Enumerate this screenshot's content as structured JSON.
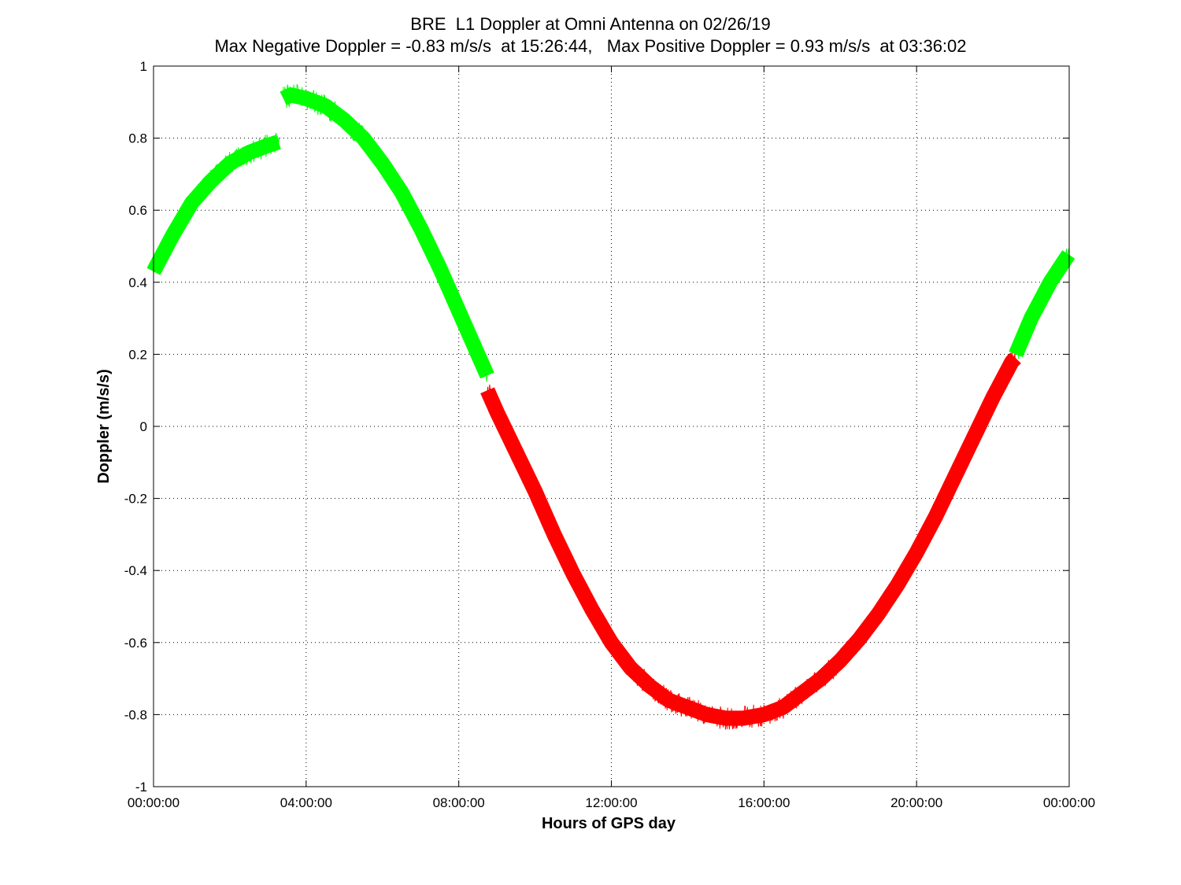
{
  "chart_data": {
    "type": "line",
    "title": "BRE  L1 Doppler at Omni Antenna on 02/26/19",
    "subtitle": "Max Negative Doppler = -0.83 m/s/s  at 15:26:44,   Max Positive Doppler = 0.93 m/s/s  at 03:36:02",
    "xlabel": "Hours of GPS day",
    "ylabel": "Doppler (m/s/s)",
    "xlim": [
      0,
      24
    ],
    "ylim": [
      -1,
      1
    ],
    "x_ticks": [
      0,
      4,
      8,
      12,
      16,
      20,
      24
    ],
    "x_tick_labels": [
      "00:00:00",
      "04:00:00",
      "08:00:00",
      "12:00:00",
      "16:00:00",
      "20:00:00",
      "00:00:00"
    ],
    "y_ticks": [
      -1,
      -0.8,
      -0.6,
      -0.4,
      -0.2,
      0,
      0.2,
      0.4,
      0.6,
      0.8,
      1
    ],
    "y_tick_labels": [
      "-1",
      "-0.8",
      "-0.6",
      "-0.4",
      "-0.2",
      "0",
      "0.2",
      "0.4",
      "0.6",
      "0.8",
      "1"
    ],
    "grid": true,
    "band_width": 0.06,
    "series": [
      {
        "color": "#00ff00",
        "x": [
          0,
          0.5,
          1,
          1.5,
          2,
          2.5,
          3,
          3.3
        ],
        "y": [
          0.43,
          0.53,
          0.62,
          0.68,
          0.73,
          0.76,
          0.78,
          0.79
        ]
      },
      {
        "color": "#00ff00",
        "x": [
          3.4,
          3.6,
          4,
          4.5,
          5,
          5.5,
          6,
          6.5,
          7,
          7.5,
          8,
          8.5,
          8.75
        ],
        "y": [
          0.91,
          0.92,
          0.91,
          0.89,
          0.85,
          0.8,
          0.73,
          0.65,
          0.55,
          0.44,
          0.32,
          0.2,
          0.14
        ]
      },
      {
        "color": "#ff0000",
        "x": [
          8.75,
          9,
          9.5,
          10,
          10.5,
          11,
          11.5,
          12,
          12.5,
          13,
          13.5,
          14,
          14.5,
          15,
          15.45,
          16,
          16.5,
          17,
          17.5,
          18,
          18.5,
          19,
          19.5,
          20,
          20.5,
          21,
          21.5,
          22,
          22.5,
          22.6
        ],
        "y": [
          0.1,
          0.04,
          -0.07,
          -0.18,
          -0.3,
          -0.41,
          -0.51,
          -0.6,
          -0.67,
          -0.72,
          -0.76,
          -0.78,
          -0.8,
          -0.81,
          -0.81,
          -0.8,
          -0.78,
          -0.74,
          -0.7,
          -0.65,
          -0.59,
          -0.52,
          -0.44,
          -0.35,
          -0.25,
          -0.14,
          -0.03,
          0.08,
          0.18,
          0.19
        ]
      },
      {
        "color": "#00ff00",
        "x": [
          22.6,
          23,
          23.5,
          24
        ],
        "y": [
          0.2,
          0.3,
          0.4,
          0.48
        ]
      }
    ]
  }
}
